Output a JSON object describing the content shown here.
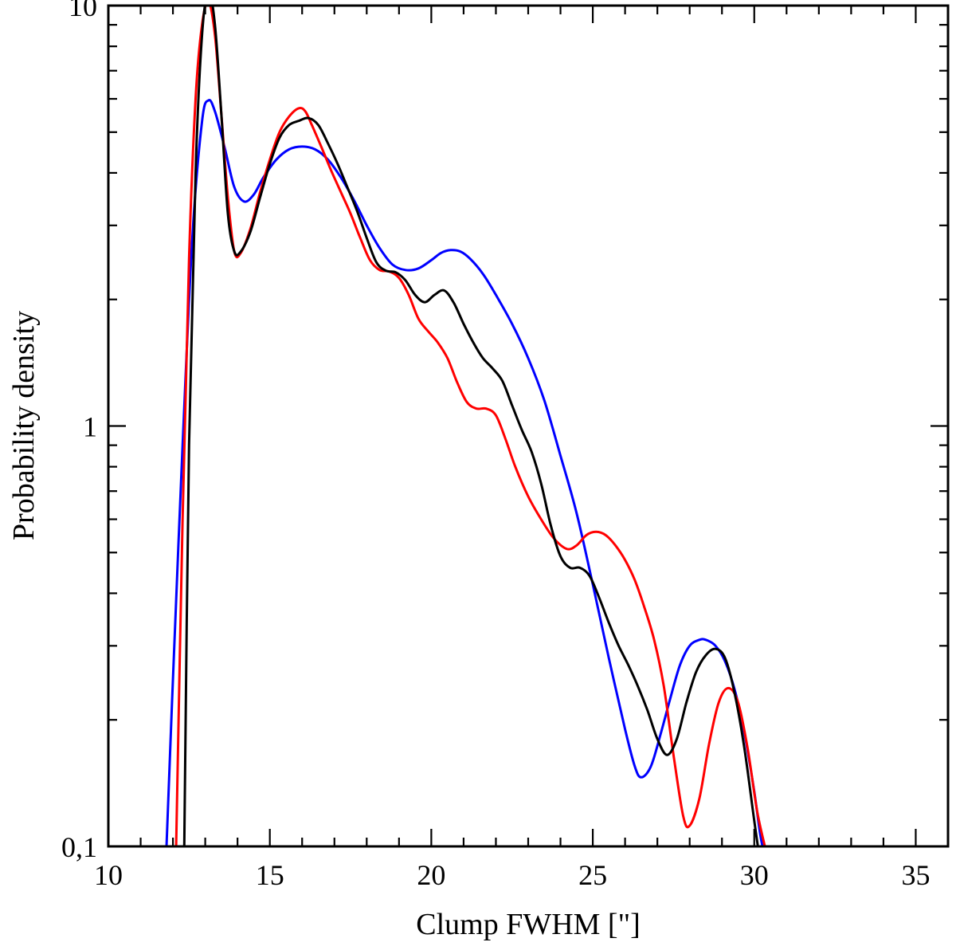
{
  "chart_data": {
    "type": "line",
    "title": "",
    "xlabel": "Clump FWHM [\"]",
    "ylabel": "Probability density",
    "xlim": [
      10,
      36
    ],
    "ylim": [
      0.1,
      10
    ],
    "yscale": "log",
    "x_ticks": [
      {
        "value": 10,
        "label": "10"
      },
      {
        "value": 15,
        "label": "15"
      },
      {
        "value": 20,
        "label": "20"
      },
      {
        "value": 25,
        "label": "25"
      },
      {
        "value": 30,
        "label": "30"
      },
      {
        "value": 35,
        "label": "35"
      }
    ],
    "y_ticks": [
      {
        "value": 0.1,
        "label": "0,1"
      },
      {
        "value": 1,
        "label": "1"
      },
      {
        "value": 10,
        "label": "10"
      }
    ],
    "series": [
      {
        "name": "blue",
        "color": "#0000ff",
        "x": [
          11.8,
          12.0,
          12.3,
          12.6,
          12.9,
          13.1,
          13.3,
          13.6,
          13.9,
          14.2,
          14.5,
          14.8,
          15.2,
          15.6,
          16.0,
          16.4,
          16.8,
          17.2,
          17.6,
          18.0,
          18.4,
          18.8,
          19.2,
          19.6,
          20.0,
          20.3,
          20.6,
          20.9,
          21.2,
          21.6,
          22.0,
          22.5,
          23.0,
          23.5,
          24.0,
          24.5,
          25.0,
          25.5,
          26.0,
          26.3,
          26.5,
          26.8,
          27.1,
          27.4,
          27.7,
          28.0,
          28.3,
          28.5,
          28.8,
          29.1,
          29.4,
          29.7,
          30.0,
          30.2,
          30.4
        ],
        "values": [
          0.1,
          0.25,
          0.9,
          2.8,
          5.3,
          5.95,
          5.6,
          4.6,
          3.7,
          3.42,
          3.55,
          3.9,
          4.3,
          4.55,
          4.62,
          4.55,
          4.3,
          3.9,
          3.45,
          3.0,
          2.65,
          2.42,
          2.35,
          2.37,
          2.48,
          2.58,
          2.62,
          2.6,
          2.5,
          2.3,
          2.05,
          1.75,
          1.45,
          1.15,
          0.85,
          0.62,
          0.42,
          0.28,
          0.19,
          0.155,
          0.146,
          0.155,
          0.185,
          0.225,
          0.27,
          0.3,
          0.31,
          0.31,
          0.3,
          0.275,
          0.235,
          0.185,
          0.135,
          0.105,
          0.09
        ]
      },
      {
        "name": "red",
        "color": "#ff0000",
        "x": [
          12.1,
          12.3,
          12.5,
          12.7,
          12.9,
          13.1,
          13.3,
          13.5,
          13.7,
          13.9,
          14.1,
          14.4,
          14.7,
          15.0,
          15.3,
          15.6,
          15.9,
          16.1,
          16.3,
          16.6,
          16.9,
          17.2,
          17.5,
          17.8,
          18.1,
          18.4,
          18.7,
          19.0,
          19.3,
          19.6,
          19.9,
          20.2,
          20.5,
          20.8,
          21.1,
          21.4,
          21.7,
          22.0,
          22.3,
          22.6,
          23.0,
          23.4,
          23.8,
          24.2,
          24.5,
          24.8,
          25.1,
          25.4,
          25.7,
          26.0,
          26.3,
          26.6,
          26.9,
          27.2,
          27.5,
          27.8,
          28.0,
          28.3,
          28.6,
          28.9,
          29.2,
          29.5,
          29.8,
          30.1,
          30.4
        ],
        "values": [
          0.1,
          0.6,
          2.5,
          6.0,
          9.0,
          10.2,
          8.5,
          5.5,
          3.5,
          2.6,
          2.58,
          2.95,
          3.6,
          4.3,
          5.0,
          5.45,
          5.7,
          5.6,
          5.2,
          4.6,
          4.05,
          3.6,
          3.2,
          2.8,
          2.48,
          2.35,
          2.33,
          2.25,
          2.05,
          1.8,
          1.68,
          1.58,
          1.45,
          1.27,
          1.14,
          1.1,
          1.1,
          1.06,
          0.93,
          0.8,
          0.68,
          0.6,
          0.54,
          0.51,
          0.52,
          0.55,
          0.56,
          0.55,
          0.52,
          0.48,
          0.43,
          0.37,
          0.31,
          0.24,
          0.165,
          0.118,
          0.112,
          0.13,
          0.175,
          0.22,
          0.238,
          0.22,
          0.17,
          0.12,
          0.095
        ]
      },
      {
        "name": "black",
        "color": "#000000",
        "x": [
          12.35,
          12.5,
          12.7,
          12.9,
          13.1,
          13.3,
          13.5,
          13.7,
          13.9,
          14.1,
          14.4,
          14.7,
          15.0,
          15.3,
          15.6,
          15.9,
          16.2,
          16.5,
          16.8,
          17.1,
          17.4,
          17.7,
          18.0,
          18.3,
          18.6,
          18.9,
          19.2,
          19.5,
          19.8,
          20.1,
          20.4,
          20.7,
          21.0,
          21.3,
          21.6,
          21.9,
          22.2,
          22.5,
          22.8,
          23.1,
          23.4,
          23.7,
          24.0,
          24.3,
          24.6,
          24.9,
          25.2,
          25.5,
          25.8,
          26.1,
          26.4,
          26.7,
          27.0,
          27.3,
          27.6,
          27.9,
          28.2,
          28.5,
          28.8,
          29.1,
          29.4,
          29.7,
          30.0,
          30.2
        ],
        "values": [
          0.1,
          0.9,
          4.0,
          8.5,
          10.8,
          9.0,
          5.5,
          3.2,
          2.6,
          2.6,
          2.9,
          3.5,
          4.2,
          4.85,
          5.2,
          5.32,
          5.4,
          5.2,
          4.7,
          4.2,
          3.7,
          3.25,
          2.8,
          2.45,
          2.34,
          2.32,
          2.22,
          2.05,
          1.97,
          2.05,
          2.1,
          1.96,
          1.75,
          1.58,
          1.45,
          1.37,
          1.28,
          1.12,
          0.98,
          0.87,
          0.73,
          0.58,
          0.49,
          0.46,
          0.46,
          0.44,
          0.39,
          0.34,
          0.3,
          0.27,
          0.24,
          0.21,
          0.18,
          0.165,
          0.18,
          0.22,
          0.26,
          0.285,
          0.295,
          0.28,
          0.23,
          0.17,
          0.115,
          0.09
        ]
      }
    ]
  }
}
